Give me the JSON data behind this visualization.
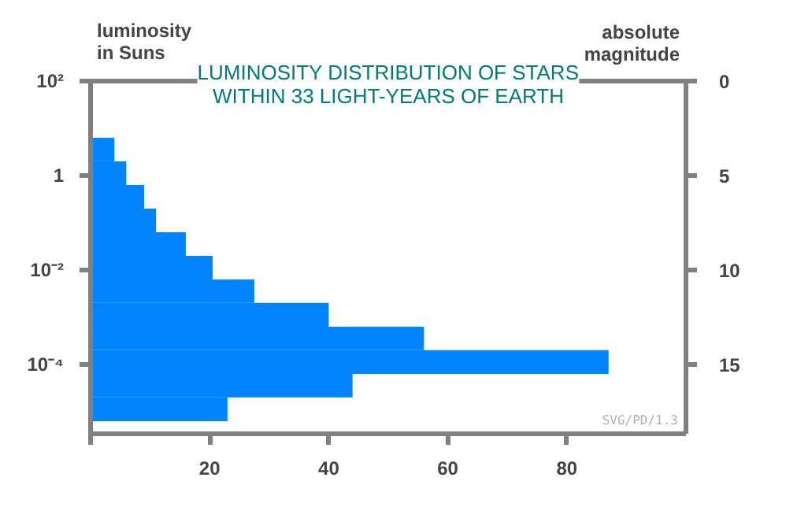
{
  "chart_data": {
    "type": "histogram",
    "orientation": "horizontal",
    "title": "LUMINOSITY DISTRIBUTION OF STARS\nWITHIN 33 LIGHT-YEARS OF EARTH",
    "ylabel": "luminosity\nin Suns",
    "y2label": "absolute\nmagnitude",
    "bins": [
      6.3,
      2,
      0.63,
      0.2,
      0.063,
      0.02,
      0.0063,
      0.002,
      0.00063,
      0.0002,
      6.3e-05,
      2e-05,
      6.3e-06
    ],
    "values": [
      4,
      6,
      9,
      11,
      16,
      20.5,
      27.5,
      40,
      56,
      87,
      44,
      23
    ],
    "color": "#0084ff",
    "log": "y",
    "xlim": [
      0,
      100
    ],
    "xticks": [
      {
        "value": 0,
        "label": null
      },
      20,
      40,
      60,
      80
    ],
    "ylim": [
      3.4e-06,
      100
    ],
    "yticks": [
      {
        "value": 100,
        "label": "10²"
      },
      1,
      {
        "value": 0.01,
        "label": "10⁻²"
      },
      {
        "value": 0.0001,
        "label": "10⁻⁴"
      }
    ],
    "y2lim": [
      18.67,
      0
    ],
    "y2ticks": [
      0,
      5,
      10,
      15
    ],
    "annotations": [
      "SVG/PD/1.3"
    ]
  }
}
